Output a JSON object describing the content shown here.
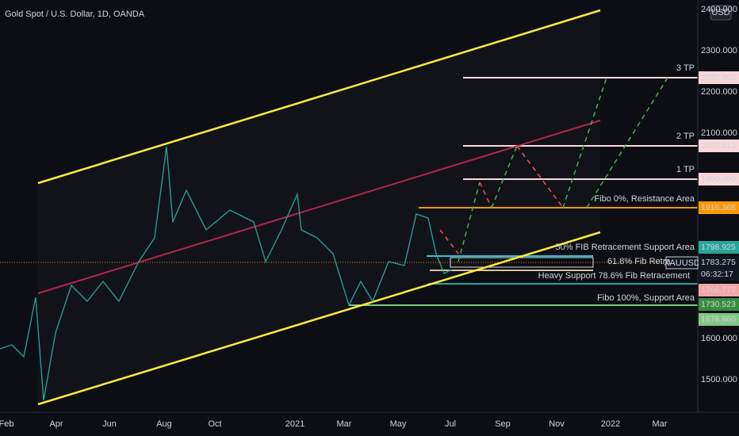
{
  "header": {
    "title": "Gold Spot / U.S. Dollar, 1D, OANDA",
    "currency": "USD",
    "symbol": "XAUUSD"
  },
  "price_axis": {
    "labels": [
      "2400.000",
      "2300.000",
      "2200.000",
      "2100.000",
      "1600.000",
      "1500.000"
    ]
  },
  "time_axis": {
    "labels": [
      "Feb",
      "Apr",
      "Jun",
      "Aug",
      "Oct",
      "2021",
      "Mar",
      "May",
      "Jul",
      "Sep",
      "Nov",
      "2022",
      "Mar"
    ]
  },
  "price_tags": [
    "2235.902",
    "2070.813",
    "1990.000",
    "1916.368",
    "1798.925",
    "1783.275",
    "06:32:17",
    "1766.777",
    "1730.523",
    "1678.860"
  ],
  "annotations": [
    "3 TP",
    "2 TP",
    "1 TP",
    "Fibo 0%, Resistance Area",
    "50% FIB Retracement Support Area",
    "61.8% Fib Retra",
    "Heavy Support 78.6% Fib Retracement",
    "Fibo 100%, Support Area"
  ]
}
